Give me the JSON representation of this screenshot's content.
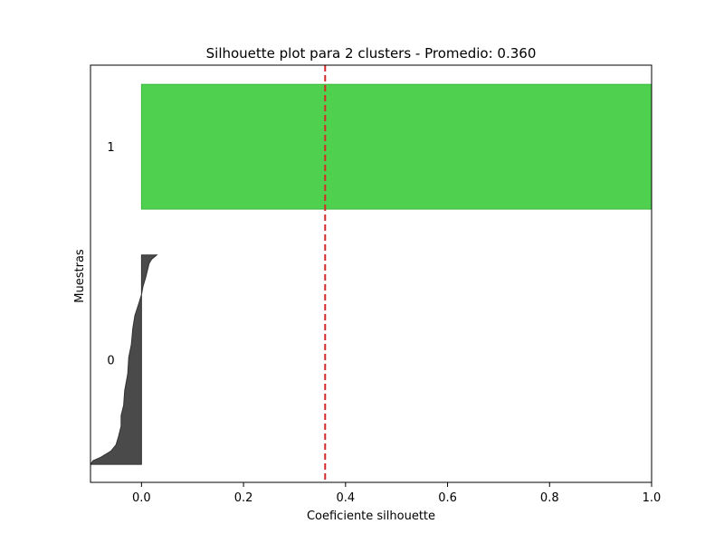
{
  "chart_data": {
    "type": "area",
    "title": "Silhouette plot para 2 clusters - Promedio: 0.360",
    "xlabel": "Coeficiente silhouette",
    "ylabel": "Muestras",
    "xlim": [
      -0.1,
      1.0
    ],
    "ylim": [
      0,
      100
    ],
    "xticks": [
      0.0,
      0.2,
      0.4,
      0.6,
      0.8,
      1.0
    ],
    "xtick_labels": [
      "0.0",
      "0.2",
      "0.4",
      "0.6",
      "0.8",
      "1.0"
    ],
    "yticks": [],
    "grid": false,
    "average_line": {
      "value": 0.36,
      "color": "#d62728",
      "style": "dashed"
    },
    "clusters": [
      {
        "label": "0",
        "color": "#4a4a4a",
        "y_range": [
          4.3,
          54.5
        ],
        "profile": [
          [
            4.3,
            -0.1
          ],
          [
            5.2,
            -0.095
          ],
          [
            6.0,
            -0.08
          ],
          [
            7.5,
            -0.06
          ],
          [
            9.0,
            -0.05
          ],
          [
            11.0,
            -0.045
          ],
          [
            13.5,
            -0.04
          ],
          [
            16.0,
            -0.04
          ],
          [
            18.5,
            -0.035
          ],
          [
            22.0,
            -0.033
          ],
          [
            26.0,
            -0.027
          ],
          [
            30.0,
            -0.025
          ],
          [
            33.0,
            -0.02
          ],
          [
            37.0,
            -0.017
          ],
          [
            40.0,
            -0.013
          ],
          [
            43.0,
            -0.005
          ],
          [
            45.0,
            0.0
          ],
          [
            47.0,
            0.003
          ],
          [
            49.0,
            0.008
          ],
          [
            51.0,
            0.012
          ],
          [
            52.5,
            0.015
          ],
          [
            53.5,
            0.02
          ],
          [
            54.5,
            0.03
          ]
        ]
      },
      {
        "label": "1",
        "color": "#4fd14f",
        "y_range": [
          65.5,
          95.4
        ],
        "value": 1.0
      }
    ]
  }
}
